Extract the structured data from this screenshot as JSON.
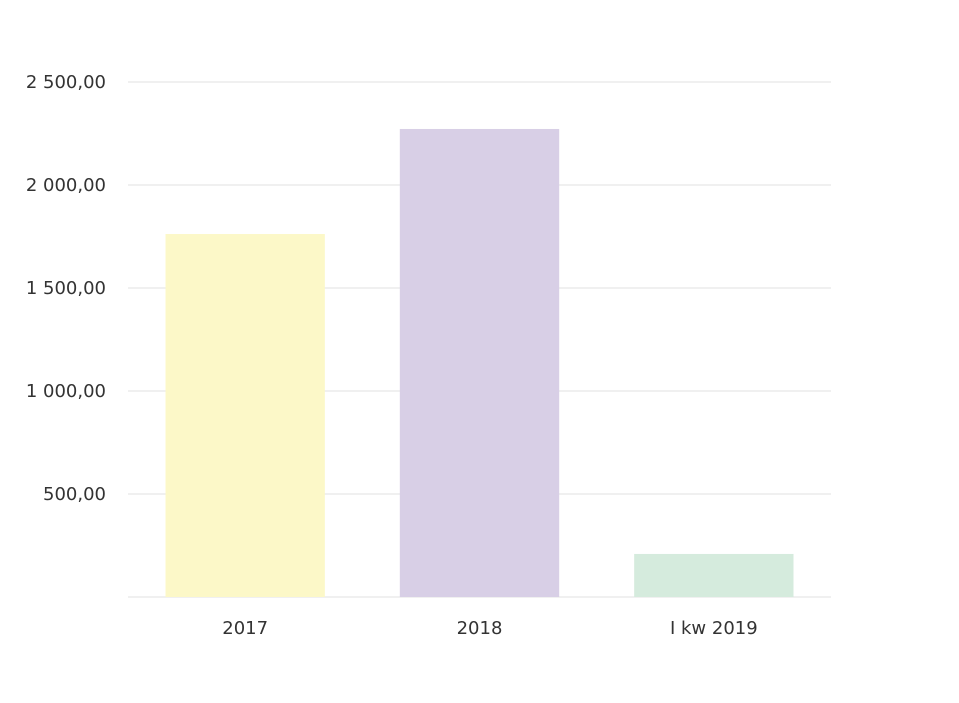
{
  "chart_data": {
    "type": "bar",
    "categories": [
      "2017",
      "2018",
      "I kw 2019"
    ],
    "values": [
      1762,
      2272,
      209
    ],
    "colors": [
      "#fcf8c8",
      "#d8cfe6",
      "#d5ebdd"
    ],
    "ylim": [
      0,
      2500
    ],
    "yticks": [
      {
        "value": 500,
        "label": "500,00"
      },
      {
        "value": 1000,
        "label": "1 000,00"
      },
      {
        "value": 1500,
        "label": "1 500,00"
      },
      {
        "value": 2000,
        "label": "2 000,00"
      },
      {
        "value": 2500,
        "label": "2 500,00"
      }
    ],
    "grid": true
  }
}
